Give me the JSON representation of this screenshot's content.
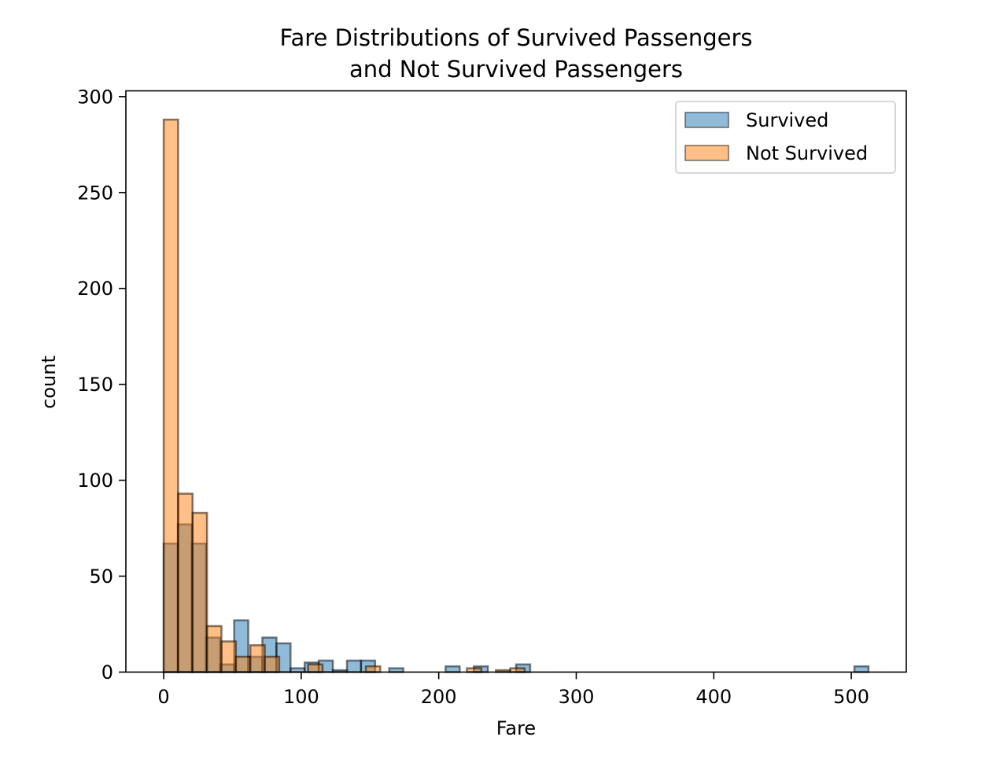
{
  "chart_data": {
    "type": "bar",
    "title_lines": [
      "Fare Distributions of Survived Passengers",
      "and Not Survived Passengers"
    ],
    "xlabel": "Fare",
    "ylabel": "count",
    "xlim": [
      -27.5,
      540
    ],
    "ylim": [
      0,
      303
    ],
    "x_ticks": [
      0,
      100,
      200,
      300,
      400,
      500
    ],
    "y_ticks": [
      0,
      50,
      100,
      150,
      200,
      250,
      300
    ],
    "grid": false,
    "legend_position": "top-right",
    "series": [
      {
        "name": "Survived",
        "color": "#1f77b4",
        "bin_edges": [
          0,
          10.25,
          20.5,
          30.75,
          41,
          51.25,
          61.5,
          71.75,
          82,
          92.25,
          102.5,
          112.75,
          123,
          133.25,
          143.5,
          153.75,
          164,
          174.25,
          184.5,
          194.75,
          205,
          215.25,
          225.5,
          235.75,
          246,
          256.25,
          266.5,
          276.75,
          287,
          297.25,
          307.5,
          317.75,
          328,
          338.25,
          348.5,
          358.75,
          369,
          379.25,
          389.5,
          399.75,
          410,
          420.25,
          430.5,
          440.75,
          451,
          461.25,
          471.5,
          481.75,
          492,
          502.25,
          512.5
        ],
        "counts": [
          67,
          77,
          67,
          18,
          4,
          27,
          8,
          18,
          15,
          2,
          5,
          6,
          1,
          6,
          6,
          0,
          2,
          0,
          0,
          0,
          3,
          0,
          3,
          0,
          0,
          4,
          0,
          0,
          0,
          0,
          0,
          0,
          0,
          0,
          0,
          0,
          0,
          0,
          0,
          0,
          0,
          0,
          0,
          0,
          0,
          0,
          0,
          0,
          0,
          3
        ]
      },
      {
        "name": "Not Survived",
        "color": "#ff7f0e",
        "bin_edges": [
          0,
          10.5,
          21,
          31.5,
          42,
          52.5,
          63,
          73.5,
          84,
          94.5,
          105,
          115.5,
          126,
          136.5,
          147,
          157.5,
          168,
          178.5,
          189,
          199.5,
          210,
          220.5,
          231,
          241.5,
          252,
          262.5
        ],
        "counts": [
          288,
          93,
          83,
          24,
          16,
          8,
          14,
          8,
          0,
          0,
          4,
          0,
          0,
          0,
          3,
          0,
          0,
          0,
          0,
          0,
          0,
          2,
          0,
          1,
          2
        ]
      }
    ]
  }
}
